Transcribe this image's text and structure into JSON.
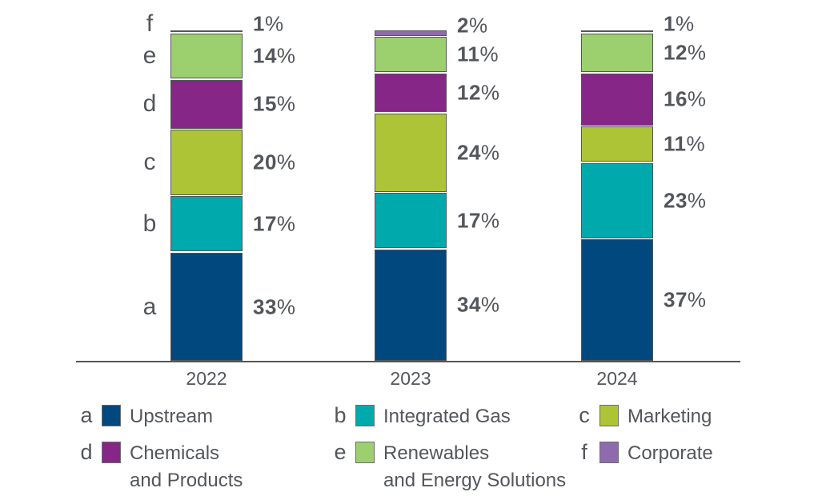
{
  "chart_data": {
    "type": "bar",
    "stacked": true,
    "title": "",
    "categories": [
      "2022",
      "2023",
      "2024"
    ],
    "series": [
      {
        "key": "a",
        "name": "Upstream",
        "color": "#00487d",
        "values": [
          33,
          34,
          37
        ]
      },
      {
        "key": "b",
        "name": "Integrated Gas",
        "color": "#00a9ab",
        "values": [
          17,
          17,
          23
        ]
      },
      {
        "key": "c",
        "name": "Marketing",
        "color": "#aec437",
        "values": [
          20,
          24,
          11
        ]
      },
      {
        "key": "d",
        "name": "Chemicals and Products",
        "color": "#862687",
        "values": [
          15,
          12,
          16
        ]
      },
      {
        "key": "e",
        "name": "Renewables and Energy Solutions",
        "color": "#9ccf6e",
        "values": [
          14,
          11,
          12
        ]
      },
      {
        "key": "f",
        "name": "Corporate",
        "color": "#8f6bae",
        "values": [
          1,
          2,
          1
        ]
      }
    ],
    "value_suffix": "%",
    "ylim": [
      0,
      100
    ],
    "grid": false,
    "legend_position": "bottom",
    "segment_letter_labels_shown_on": "first-bar-only"
  },
  "legend": {
    "rows": [
      [
        {
          "key": "a",
          "lines": [
            "Upstream"
          ]
        },
        {
          "key": "b",
          "lines": [
            "Integrated Gas"
          ]
        },
        {
          "key": "c",
          "lines": [
            "Marketing"
          ]
        }
      ],
      [
        {
          "key": "d",
          "lines": [
            "Chemicals",
            "and Products"
          ]
        },
        {
          "key": "e",
          "lines": [
            "Renewables",
            "and Energy Solutions"
          ]
        },
        {
          "key": "f",
          "lines": [
            "Corporate"
          ]
        }
      ]
    ]
  },
  "style": {
    "text_color": "#53565a",
    "segment_border_color": "#53565a",
    "axis_color": "#53565a",
    "background": "#ffffff"
  }
}
